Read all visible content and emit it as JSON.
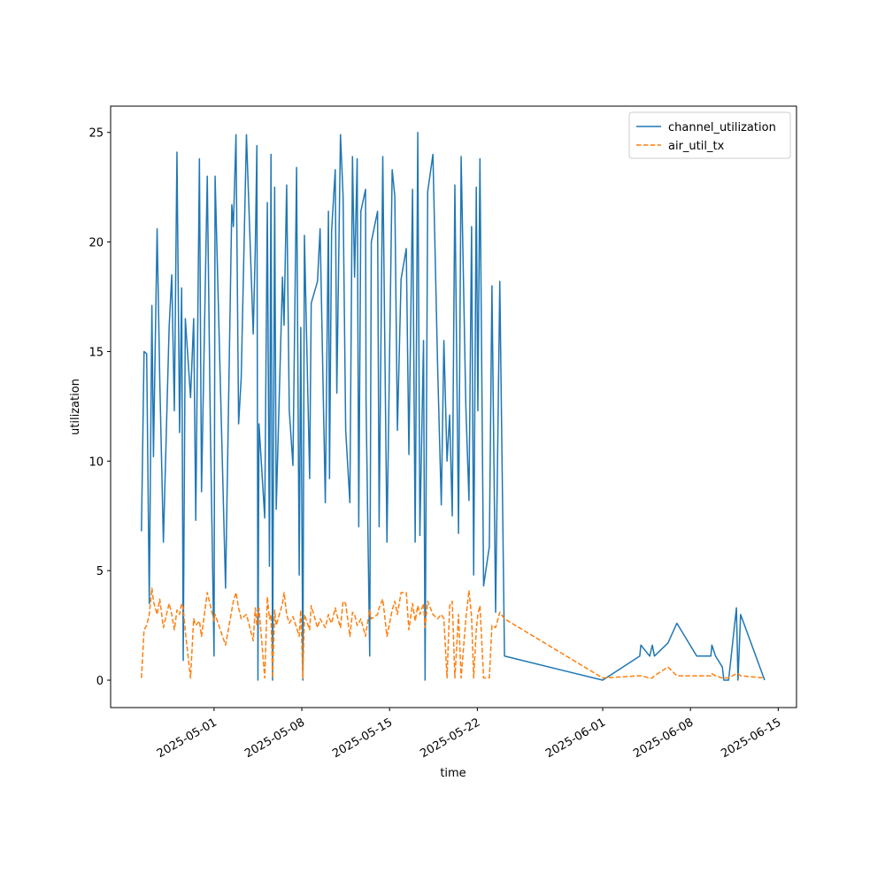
{
  "chart_data": {
    "type": "line",
    "x_label": "time",
    "y_label": "utilization",
    "x": [
      "2025-04-25T05:00",
      "2025-04-25T10:00",
      "2025-04-25T15:00",
      "2025-04-25T20:00",
      "2025-04-26T01:00",
      "2025-04-26T04:00",
      "2025-04-26T11:00",
      "2025-04-26T16:00",
      "2025-04-26T23:00",
      "2025-04-27T10:00",
      "2025-04-27T15:00",
      "2025-04-27T20:00",
      "2025-04-28T01:00",
      "2025-04-28T06:00",
      "2025-04-28T10:00",
      "2025-04-28T13:00",
      "2025-04-28T17:00",
      "2025-04-29T03:00",
      "2025-04-29T09:00",
      "2025-04-29T13:00",
      "2025-04-29T20:00",
      "2025-04-30T00:00",
      "2025-04-30T11:00",
      "2025-04-30T17:00",
      "2025-05-01T00:00",
      "2025-05-01T02:00",
      "2025-05-01T22:00",
      "2025-05-02T10:00",
      "2025-05-02T13:00",
      "2025-05-02T18:00",
      "2025-05-02T23:00",
      "2025-05-03T04:00",
      "2025-05-03T14:00",
      "2025-05-04T03:00",
      "2025-05-04T07:00",
      "2025-05-04T10:00",
      "2025-05-04T12:00",
      "2025-05-04T14:00",
      "2025-05-05T01:00",
      "2025-05-05T06:00",
      "2025-05-05T10:00",
      "2025-05-05T13:00",
      "2025-05-05T16:00",
      "2025-05-05T20:00",
      "2025-05-05T23:00",
      "2025-05-06T11:00",
      "2025-05-06T14:00",
      "2025-05-06T19:00",
      "2025-05-07T00:00",
      "2025-05-07T07:00",
      "2025-05-07T14:00",
      "2025-05-07T19:00",
      "2025-05-07T22:00",
      "2025-05-08T02:00",
      "2025-05-08T05:00",
      "2025-05-08T15:00",
      "2025-05-08T18:00",
      "2025-05-09T06:00",
      "2025-05-09T11:00",
      "2025-05-09T21:00",
      "2025-05-10T03:00",
      "2025-05-10T05:00",
      "2025-05-10T09:00",
      "2025-05-10T16:00",
      "2025-05-10T19:00",
      "2025-05-11T02:00",
      "2025-05-11T07:00",
      "2025-05-11T12:00",
      "2025-05-11T20:00",
      "2025-05-12T01:00",
      "2025-05-12T05:00",
      "2025-05-12T10:00",
      "2025-05-12T13:00",
      "2025-05-12T17:00",
      "2025-05-13T02:00",
      "2025-05-13T03:00",
      "2025-05-13T10:00",
      "2025-05-13T13:00",
      "2025-05-14T01:00",
      "2025-05-14T04:00",
      "2025-05-14T11:00",
      "2025-05-14T19:00",
      "2025-05-15T05:00",
      "2025-05-15T10:00",
      "2025-05-15T15:00",
      "2025-05-15T22:00",
      "2025-05-16T08:00",
      "2025-05-16T13:00",
      "2025-05-16T20:00",
      "2025-05-17T01:00",
      "2025-05-17T06:00",
      "2025-05-17T10:00",
      "2025-05-17T17:00",
      "2025-05-17T20:00",
      "2025-05-18T01:00",
      "2025-05-18T11:00",
      "2025-05-18T20:00",
      "2025-05-19T03:00",
      "2025-05-19T08:00",
      "2025-05-19T14:00",
      "2025-05-19T19:00",
      "2025-05-20T00:00",
      "2025-05-20T05:00",
      "2025-05-20T12:00",
      "2025-05-20T17:00",
      "2025-05-21T02:00",
      "2025-05-21T08:00",
      "2025-05-21T13:00",
      "2025-05-21T17:00",
      "2025-05-21T22:00",
      "2025-05-22T01:00",
      "2025-05-22T05:00",
      "2025-05-22T12:00",
      "2025-05-22T23:00",
      "2025-05-23T04:00",
      "2025-05-23T11:00",
      "2025-05-23T19:00",
      "2025-05-24T04:00",
      "2025-06-01T00:00",
      "2025-06-03T23:00",
      "2025-06-04T01:00",
      "2025-06-04T18:00",
      "2025-06-04T23:00",
      "2025-06-05T03:00",
      "2025-06-06T05:00",
      "2025-06-06T22:00",
      "2025-06-08T12:00",
      "2025-06-09T15:00",
      "2025-06-09T17:00",
      "2025-06-10T00:00",
      "2025-06-10T13:00",
      "2025-06-10T16:00",
      "2025-06-11T01:00",
      "2025-06-11T16:00",
      "2025-06-11T19:00",
      "2025-06-12T00:00",
      "2025-06-13T22:00"
    ],
    "series": [
      {
        "name": "channel_utilization",
        "color": "#1f77b4",
        "dash": false,
        "values": [
          6.8,
          15.0,
          14.9,
          3.5,
          17.1,
          10.2,
          20.6,
          13.8,
          6.3,
          16.1,
          18.5,
          12.3,
          24.1,
          11.3,
          17.9,
          0.9,
          16.5,
          12.9,
          16.5,
          7.3,
          23.8,
          8.6,
          23.0,
          11.4,
          1.1,
          23.0,
          4.2,
          21.7,
          20.7,
          24.9,
          11.7,
          13.8,
          24.9,
          15.8,
          19.8,
          24.4,
          0.0,
          11.7,
          7.4,
          21.8,
          5.2,
          24.0,
          0.0,
          22.5,
          7.8,
          18.4,
          16.2,
          22.6,
          12.3,
          9.8,
          23.4,
          4.8,
          16.1,
          0.0,
          20.3,
          9.2,
          17.2,
          18.2,
          20.6,
          8.1,
          21.4,
          9.2,
          20.5,
          23.3,
          13.1,
          24.9,
          22.1,
          11.4,
          8.1,
          23.9,
          18.4,
          23.8,
          7.0,
          21.4,
          22.4,
          12.7,
          1.1,
          20.0,
          21.4,
          7.0,
          23.9,
          6.3,
          23.3,
          22.1,
          11.4,
          18.3,
          19.7,
          10.3,
          22.4,
          6.3,
          25.0,
          6.6,
          15.5,
          0.0,
          22.3,
          24.0,
          14.3,
          8.0,
          15.5,
          10.0,
          12.1,
          7.5,
          22.6,
          6.7,
          23.9,
          12.5,
          8.2,
          20.7,
          4.8,
          22.5,
          12.3,
          23.8,
          4.3,
          6.1,
          18.0,
          3.1,
          18.2,
          1.1,
          0.0,
          1.1,
          1.6,
          1.1,
          1.6,
          1.1,
          1.7,
          2.6,
          1.1,
          1.1,
          1.6,
          1.1,
          0.6,
          0.0,
          0.0,
          3.3,
          0.0,
          3.0,
          0.0
        ]
      },
      {
        "name": "air_util_tx",
        "color": "#ff7f0e",
        "dash": true,
        "values": [
          0.1,
          2.3,
          2.5,
          3.0,
          4.2,
          3.6,
          3.0,
          3.7,
          2.4,
          3.5,
          3.0,
          2.3,
          3.2,
          3.0,
          3.5,
          3.3,
          2.2,
          0.1,
          2.8,
          2.5,
          2.7,
          2.0,
          4.0,
          3.4,
          2.7,
          3.0,
          1.6,
          3.2,
          3.6,
          4.0,
          3.3,
          2.8,
          3.0,
          1.8,
          3.3,
          2.5,
          3.2,
          3.3,
          0.1,
          3.8,
          2.8,
          3.0,
          0.1,
          3.2,
          2.5,
          3.5,
          4.0,
          3.0,
          2.6,
          2.9,
          2.4,
          2.0,
          3.2,
          0.1,
          3.0,
          2.3,
          3.4,
          2.4,
          2.8,
          2.4,
          3.0,
          2.8,
          2.6,
          3.3,
          3.0,
          2.4,
          3.6,
          3.5,
          2.0,
          3.1,
          3.0,
          2.5,
          2.6,
          2.8,
          2.0,
          2.2,
          3.2,
          2.8,
          3.0,
          3.3,
          3.7,
          2.0,
          3.2,
          3.6,
          3.0,
          4.0,
          4.0,
          2.3,
          3.5,
          2.7,
          3.4,
          3.0,
          3.5,
          2.4,
          3.6,
          3.0,
          2.8,
          3.0,
          2.8,
          0.1,
          3.4,
          3.6,
          0.1,
          3.0,
          0.1,
          2.8,
          4.1,
          2.9,
          0.1,
          2.3,
          3.0,
          3.4,
          0.1,
          0.1,
          2.5,
          2.4,
          3.1,
          2.8,
          0.1,
          0.2,
          0.2,
          0.1,
          0.1,
          0.2,
          0.6,
          0.2,
          0.2,
          0.2,
          0.3,
          0.2,
          0.1,
          0.1,
          0.1,
          0.3,
          0.3,
          0.2,
          0.1
        ]
      }
    ],
    "xlim": [
      "2025-04-22T18:00",
      "2025-06-16T11:00"
    ],
    "xticks": [
      "2025-05-01",
      "2025-05-08",
      "2025-05-15",
      "2025-05-22",
      "2025-06-01",
      "2025-06-08",
      "2025-06-15"
    ],
    "ylim": [
      -1.25,
      26.2
    ],
    "yticks": [
      0,
      5,
      10,
      15,
      20,
      25
    ],
    "legend": "upper right"
  }
}
